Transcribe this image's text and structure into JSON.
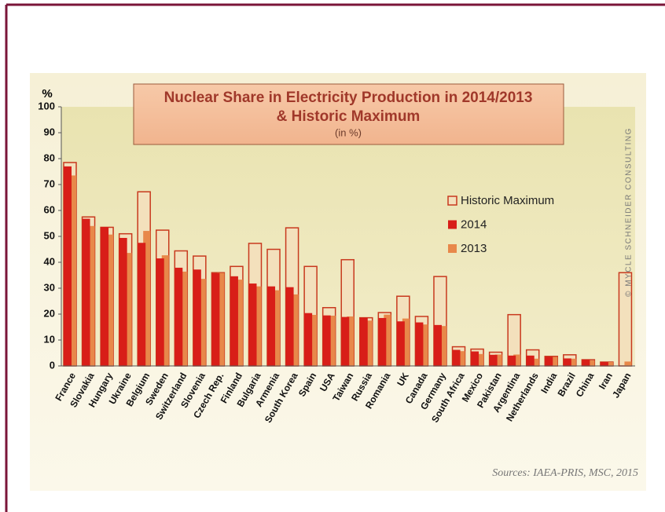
{
  "chart_data": {
    "type": "bar",
    "title": "Nuclear Share in Electricity Production in 2014/2013",
    "subtitle": "& Historic Maximum",
    "unit_note": "(in %)",
    "y_label": "%",
    "watermark": "© MYCLE SCHNEIDER CONSULTING",
    "source": "Sources: IAEA-PRIS, MSC, 2015",
    "categories": [
      "France",
      "Slovakia",
      "Hungary",
      "Ukraine",
      "Belgium",
      "Sweden",
      "Switzerland",
      "Slovenia",
      "Czech Rep.",
      "Finland",
      "Bulgaria",
      "Armenia",
      "South Korea",
      "Spain",
      "USA",
      "Taiwan",
      "Russia",
      "Romania",
      "UK",
      "Canada",
      "Germany",
      "South Africa",
      "Mexico",
      "Pakistan",
      "Argentina",
      "Netherlands",
      "India",
      "Brazil",
      "China",
      "Iran",
      "Japan"
    ],
    "series": [
      {
        "name": "Historic Maximum",
        "color": "#c8391e",
        "values": [
          78.5,
          57.5,
          53.5,
          51,
          67.2,
          52.4,
          44.4,
          42.4,
          36,
          38.4,
          47.3,
          45,
          53.3,
          38.4,
          22.5,
          41,
          18.6,
          20.6,
          26.9,
          19.1,
          34.5,
          7.4,
          6.5,
          5.3,
          19.8,
          6.2,
          3.7,
          4.3,
          2.4,
          1.5,
          36
        ]
      },
      {
        "name": "2014",
        "color": "#d81e18",
        "values": [
          77,
          56.8,
          53.6,
          49.4,
          47.5,
          41.5,
          37.9,
          37.2,
          35.8,
          34.6,
          31.8,
          30.7,
          30.4,
          20.4,
          19.5,
          18.9,
          18.6,
          18.5,
          17.2,
          16.8,
          15.8,
          6.2,
          5.6,
          4.3,
          4.0,
          4.0,
          3.5,
          2.9,
          2.4,
          1.5,
          0
        ]
      },
      {
        "name": "2013",
        "color": "#e8884a",
        "values": [
          73.5,
          54,
          50.7,
          43.6,
          52.1,
          42.7,
          36.4,
          33.6,
          35.9,
          33.3,
          30.7,
          29.2,
          27.6,
          19.7,
          19.4,
          19.1,
          17.5,
          19.8,
          18.3,
          16,
          15.4,
          5.7,
          4.6,
          4.4,
          4.4,
          2.8,
          3.5,
          2.8,
          2.1,
          1.5,
          1.7
        ]
      }
    ],
    "ylim": [
      0,
      100
    ],
    "yticks": [
      0,
      10,
      20,
      30,
      40,
      50,
      60,
      70,
      80,
      90,
      100
    ]
  }
}
